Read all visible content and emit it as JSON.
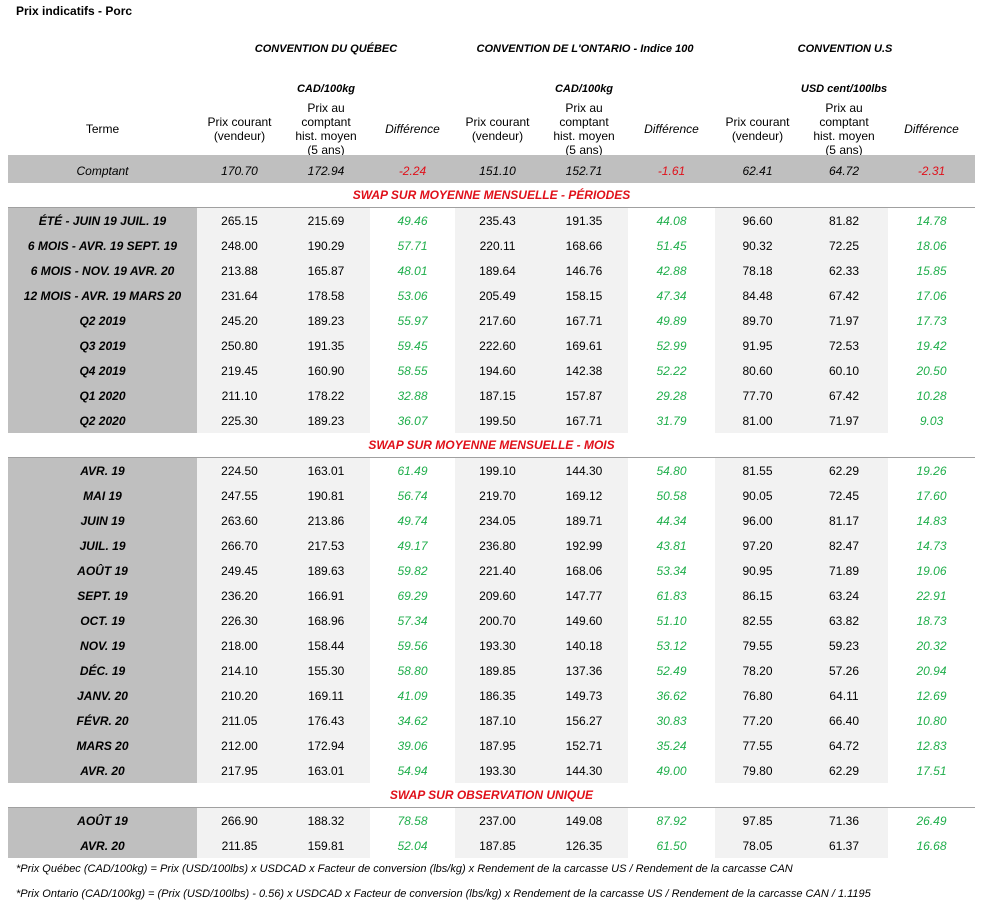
{
  "title": "Prix indicatifs - Porc",
  "conventions": [
    {
      "name": "CONVENTION DU QUÉBEC",
      "unit": "CAD/100kg"
    },
    {
      "name": "CONVENTION DE L'ONTARIO - Indice 100",
      "unit": "CAD/100kg"
    },
    {
      "name": "CONVENTION U.S",
      "unit": "USD cent/100lbs"
    }
  ],
  "headers": {
    "term": "Terme",
    "current": "Prix courant (vendeur)",
    "hist": "Prix au comptant hist. moyen (5 ans)",
    "diff": "Différence"
  },
  "colors": {
    "label_bg": "#bfbfbf",
    "cell_bg": "#f2f2f2",
    "positive": "#1fae4b",
    "negative": "#e0101a"
  },
  "cash": [
    "Comptant",
    "170.70",
    "172.94",
    "-2.24",
    "151.10",
    "152.71",
    "-1.61",
    "62.41",
    "64.72",
    "-2.31"
  ],
  "sections": [
    {
      "title": "SWAP SUR MOYENNE MENSUELLE - PÉRIODES",
      "rows": [
        [
          "ÉTÉ -  JUIN 19 JUIL. 19",
          "265.15",
          "215.69",
          "49.46",
          "235.43",
          "191.35",
          "44.08",
          "96.60",
          "81.82",
          "14.78"
        ],
        [
          "6 MOIS -  AVR. 19 SEPT. 19",
          "248.00",
          "190.29",
          "57.71",
          "220.11",
          "168.66",
          "51.45",
          "90.32",
          "72.25",
          "18.06"
        ],
        [
          "6 MOIS -  NOV. 19 AVR. 20",
          "213.88",
          "165.87",
          "48.01",
          "189.64",
          "146.76",
          "42.88",
          "78.18",
          "62.33",
          "15.85"
        ],
        [
          "12 MOIS -  AVR. 19 MARS 20",
          "231.64",
          "178.58",
          "53.06",
          "205.49",
          "158.15",
          "47.34",
          "84.48",
          "67.42",
          "17.06"
        ],
        [
          "Q2 2019",
          "245.20",
          "189.23",
          "55.97",
          "217.60",
          "167.71",
          "49.89",
          "89.70",
          "71.97",
          "17.73"
        ],
        [
          "Q3 2019",
          "250.80",
          "191.35",
          "59.45",
          "222.60",
          "169.61",
          "52.99",
          "91.95",
          "72.53",
          "19.42"
        ],
        [
          "Q4 2019",
          "219.45",
          "160.90",
          "58.55",
          "194.60",
          "142.38",
          "52.22",
          "80.60",
          "60.10",
          "20.50"
        ],
        [
          "Q1 2020",
          "211.10",
          "178.22",
          "32.88",
          "187.15",
          "157.87",
          "29.28",
          "77.70",
          "67.42",
          "10.28"
        ],
        [
          "Q2 2020",
          "225.30",
          "189.23",
          "36.07",
          "199.50",
          "167.71",
          "31.79",
          "81.00",
          "71.97",
          "9.03"
        ]
      ]
    },
    {
      "title": "SWAP SUR MOYENNE MENSUELLE - MOIS",
      "rows": [
        [
          "AVR. 19",
          "224.50",
          "163.01",
          "61.49",
          "199.10",
          "144.30",
          "54.80",
          "81.55",
          "62.29",
          "19.26"
        ],
        [
          "MAI 19",
          "247.55",
          "190.81",
          "56.74",
          "219.70",
          "169.12",
          "50.58",
          "90.05",
          "72.45",
          "17.60"
        ],
        [
          "JUIN 19",
          "263.60",
          "213.86",
          "49.74",
          "234.05",
          "189.71",
          "44.34",
          "96.00",
          "81.17",
          "14.83"
        ],
        [
          "JUIL. 19",
          "266.70",
          "217.53",
          "49.17",
          "236.80",
          "192.99",
          "43.81",
          "97.20",
          "82.47",
          "14.73"
        ],
        [
          "AOÛT 19",
          "249.45",
          "189.63",
          "59.82",
          "221.40",
          "168.06",
          "53.34",
          "90.95",
          "71.89",
          "19.06"
        ],
        [
          "SEPT. 19",
          "236.20",
          "166.91",
          "69.29",
          "209.60",
          "147.77",
          "61.83",
          "86.15",
          "63.24",
          "22.91"
        ],
        [
          "OCT. 19",
          "226.30",
          "168.96",
          "57.34",
          "200.70",
          "149.60",
          "51.10",
          "82.55",
          "63.82",
          "18.73"
        ],
        [
          "NOV. 19",
          "218.00",
          "158.44",
          "59.56",
          "193.30",
          "140.18",
          "53.12",
          "79.55",
          "59.23",
          "20.32"
        ],
        [
          "DÉC. 19",
          "214.10",
          "155.30",
          "58.80",
          "189.85",
          "137.36",
          "52.49",
          "78.20",
          "57.26",
          "20.94"
        ],
        [
          "JANV. 20",
          "210.20",
          "169.11",
          "41.09",
          "186.35",
          "149.73",
          "36.62",
          "76.80",
          "64.11",
          "12.69"
        ],
        [
          "FÉVR. 20",
          "211.05",
          "176.43",
          "34.62",
          "187.10",
          "156.27",
          "30.83",
          "77.20",
          "66.40",
          "10.80"
        ],
        [
          "MARS 20",
          "212.00",
          "172.94",
          "39.06",
          "187.95",
          "152.71",
          "35.24",
          "77.55",
          "64.72",
          "12.83"
        ],
        [
          "AVR. 20",
          "217.95",
          "163.01",
          "54.94",
          "193.30",
          "144.30",
          "49.00",
          "79.80",
          "62.29",
          "17.51"
        ]
      ]
    },
    {
      "title": "SWAP SUR OBSERVATION UNIQUE",
      "rows": [
        [
          "AOÛT 19",
          "266.90",
          "188.32",
          "78.58",
          "237.00",
          "149.08",
          "87.92",
          "97.85",
          "71.36",
          "26.49"
        ],
        [
          "AVR. 20",
          "211.85",
          "159.81",
          "52.04",
          "187.85",
          "126.35",
          "61.50",
          "78.05",
          "61.37",
          "16.68"
        ]
      ]
    }
  ],
  "notes": [
    "*Prix Québec (CAD/100kg) = Prix (USD/100lbs) x USDCAD x Facteur de conversion (lbs/kg) x Rendement de la carcasse US / Rendement de la carcasse CAN",
    "*Prix Ontario (CAD/100kg) = (Prix (USD/100lbs) - 0.56) x USDCAD x Facteur de conversion (lbs/kg) x Rendement de la carcasse US / Rendement de la carcasse CAN / 1.1195"
  ]
}
